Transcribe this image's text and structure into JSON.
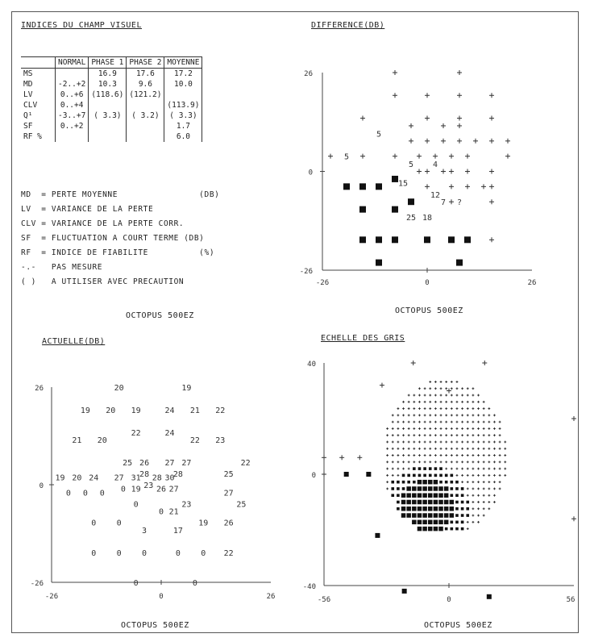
{
  "indices": {
    "title": "INDICES DU CHAMP VISUEL",
    "columns": [
      "NORMAL",
      "PHASE 1",
      "PHASE 2",
      "MOYENNE"
    ],
    "rows": [
      {
        "label": "MS",
        "normal": "",
        "phase1": "16.9",
        "phase2": "17.6",
        "moyenne": "17.2"
      },
      {
        "label": "MD",
        "normal": "-2..+2",
        "phase1": "10.3",
        "phase2": "9.6",
        "moyenne": "10.0"
      },
      {
        "label": "LV",
        "normal": "0..+6",
        "phase1": "(118.6)",
        "phase2": "(121.2)",
        "moyenne": ""
      },
      {
        "label": "CLV",
        "normal": "0..+4",
        "phase1": "",
        "phase2": "",
        "moyenne": "(113.9)"
      },
      {
        "label": "Q¹",
        "normal": "-3..+7",
        "phase1": "( 3.3)",
        "phase2": "( 3.2)",
        "moyenne": "( 3.3)"
      },
      {
        "label": "SF",
        "normal": "0..+2",
        "phase1": "",
        "phase2": "",
        "moyenne": "1.7"
      },
      {
        "label": "RF %",
        "normal": "",
        "phase1": "",
        "phase2": "",
        "moyenne": "6.0"
      }
    ],
    "legend": [
      "MD  = PERTE MOYENNE                (DB)",
      "LV  = VARIANCE DE LA PERTE",
      "CLV = VARIANCE DE LA PERTE CORR.",
      "SF  = FLUCTUATION A COURT TERME (DB)",
      "RF  = INDICE DE FIABILITE          (%)",
      "-.-   PAS MESURE",
      "( )   A UTILISER AVEC PRECAUTION"
    ],
    "footer": "OCTOPUS 500EZ"
  },
  "difference": {
    "title": "DIFFERENCE(DB)",
    "footer": "OCTOPUS 500EZ",
    "y_ticks": {
      "top": "26",
      "mid": "0",
      "bottom": "-26"
    },
    "x_ticks": {
      "left": "-26",
      "mid": "0",
      "right": "26"
    }
  },
  "actuelle": {
    "title": "ACTUELLE(DB)",
    "footer": "OCTOPUS 500EZ",
    "y_ticks": {
      "top": "26",
      "mid": "0",
      "bottom": "-26"
    },
    "x_ticks": {
      "left": "-26",
      "mid": "0",
      "right": "26"
    }
  },
  "gris": {
    "title": "ECHELLE DES GRIS",
    "footer": "OCTOPUS 500EZ",
    "y_ticks": {
      "top": "40",
      "mid": "0",
      "bottom": "-40"
    },
    "x_ticks": {
      "left": "-56",
      "mid": "0",
      "right": "56"
    }
  },
  "chart_data": [
    {
      "type": "scatter",
      "title": "DIFFERENCE(DB)",
      "xlim": [
        -26,
        26
      ],
      "ylim": [
        -26,
        26
      ],
      "plus_points": [
        [
          -8,
          26
        ],
        [
          8,
          26
        ],
        [
          -8,
          20
        ],
        [
          0,
          20
        ],
        [
          8,
          20
        ],
        [
          16,
          20
        ],
        [
          -16,
          14
        ],
        [
          0,
          14
        ],
        [
          8,
          14
        ],
        [
          16,
          14
        ],
        [
          -4,
          12
        ],
        [
          4,
          12
        ],
        [
          8,
          12
        ],
        [
          -4,
          8
        ],
        [
          0,
          8
        ],
        [
          4,
          8
        ],
        [
          8,
          8
        ],
        [
          12,
          8
        ],
        [
          16,
          8
        ],
        [
          20,
          8
        ],
        [
          -24,
          4
        ],
        [
          -16,
          4
        ],
        [
          -8,
          4
        ],
        [
          -2,
          4
        ],
        [
          2,
          4
        ],
        [
          6,
          4
        ],
        [
          10,
          4
        ],
        [
          20,
          4
        ],
        [
          -2,
          0
        ],
        [
          0,
          0
        ],
        [
          4,
          0
        ],
        [
          6,
          0
        ],
        [
          10,
          0
        ],
        [
          16,
          0
        ],
        [
          0,
          -4
        ],
        [
          6,
          -4
        ],
        [
          10,
          -4
        ],
        [
          14,
          -4
        ],
        [
          16,
          -4
        ],
        [
          6,
          -8
        ],
        [
          16,
          -8
        ],
        [
          16,
          -18
        ]
      ],
      "square_points": [
        [
          -20,
          -4
        ],
        [
          -16,
          -4
        ],
        [
          -12,
          -4
        ],
        [
          -8,
          -2
        ],
        [
          -16,
          -10
        ],
        [
          -8,
          -10
        ],
        [
          -4,
          -8
        ],
        [
          -8,
          -18
        ],
        [
          -16,
          -18
        ],
        [
          -12,
          -18
        ],
        [
          0,
          -18
        ],
        [
          6,
          -18
        ],
        [
          10,
          -18
        ],
        [
          -12,
          -24
        ],
        [
          8,
          -24
        ]
      ],
      "value_labels": [
        {
          "x": -12,
          "y": 10,
          "text": "5"
        },
        {
          "x": -20,
          "y": 4,
          "text": "5"
        },
        {
          "x": -4,
          "y": 2,
          "text": "5"
        },
        {
          "x": 2,
          "y": 2,
          "text": "4"
        },
        {
          "x": -6,
          "y": -3,
          "text": "15"
        },
        {
          "x": 2,
          "y": -6,
          "text": "12"
        },
        {
          "x": 4,
          "y": -8,
          "text": "7"
        },
        {
          "x": 8,
          "y": -8,
          "text": "?"
        },
        {
          "x": -4,
          "y": -12,
          "text": "25"
        },
        {
          "x": 0,
          "y": -12,
          "text": "18"
        }
      ]
    },
    {
      "type": "table",
      "title": "ACTUELLE(DB)",
      "xlim": [
        -26,
        26
      ],
      "ylim": [
        -26,
        26
      ],
      "values": [
        {
          "x": -10,
          "y": 26,
          "v": "20"
        },
        {
          "x": 6,
          "y": 26,
          "v": "19"
        },
        {
          "x": -18,
          "y": 20,
          "v": "19"
        },
        {
          "x": -12,
          "y": 20,
          "v": "20"
        },
        {
          "x": -6,
          "y": 20,
          "v": "19"
        },
        {
          "x": 2,
          "y": 20,
          "v": "24"
        },
        {
          "x": 8,
          "y": 20,
          "v": "21"
        },
        {
          "x": 14,
          "y": 20,
          "v": "22"
        },
        {
          "x": -20,
          "y": 12,
          "v": "21"
        },
        {
          "x": -14,
          "y": 12,
          "v": "20"
        },
        {
          "x": -6,
          "y": 14,
          "v": "22"
        },
        {
          "x": 2,
          "y": 14,
          "v": "24"
        },
        {
          "x": 8,
          "y": 12,
          "v": "22"
        },
        {
          "x": 14,
          "y": 12,
          "v": "23"
        },
        {
          "x": -8,
          "y": 6,
          "v": "25"
        },
        {
          "x": -4,
          "y": 6,
          "v": "26"
        },
        {
          "x": 2,
          "y": 6,
          "v": "27"
        },
        {
          "x": 6,
          "y": 6,
          "v": "27"
        },
        {
          "x": 20,
          "y": 6,
          "v": "22"
        },
        {
          "x": -24,
          "y": 2,
          "v": "19"
        },
        {
          "x": -20,
          "y": 2,
          "v": "20"
        },
        {
          "x": -16,
          "y": 2,
          "v": "24"
        },
        {
          "x": -10,
          "y": 2,
          "v": "27"
        },
        {
          "x": -6,
          "y": 2,
          "v": "31"
        },
        {
          "x": -4,
          "y": 3,
          "v": "28"
        },
        {
          "x": -1,
          "y": 2,
          "v": "28"
        },
        {
          "x": 2,
          "y": 2,
          "v": "30"
        },
        {
          "x": 4,
          "y": 3,
          "v": "28"
        },
        {
          "x": 16,
          "y": 3,
          "v": "25"
        },
        {
          "x": -22,
          "y": -2,
          "v": "0"
        },
        {
          "x": -18,
          "y": -2,
          "v": "0"
        },
        {
          "x": -14,
          "y": -2,
          "v": "0"
        },
        {
          "x": -9,
          "y": -1,
          "v": "0"
        },
        {
          "x": -6,
          "y": -1,
          "v": "19"
        },
        {
          "x": -3,
          "y": 0,
          "v": "23"
        },
        {
          "x": 0,
          "y": -1,
          "v": "26"
        },
        {
          "x": 3,
          "y": -1,
          "v": "27"
        },
        {
          "x": 16,
          "y": -2,
          "v": "27"
        },
        {
          "x": -6,
          "y": -5,
          "v": "0"
        },
        {
          "x": 0,
          "y": -7,
          "v": "0"
        },
        {
          "x": 3,
          "y": -7,
          "v": "21"
        },
        {
          "x": 6,
          "y": -5,
          "v": "23"
        },
        {
          "x": 19,
          "y": -5,
          "v": "25"
        },
        {
          "x": -16,
          "y": -10,
          "v": "0"
        },
        {
          "x": -10,
          "y": -10,
          "v": "0"
        },
        {
          "x": -4,
          "y": -12,
          "v": "3"
        },
        {
          "x": 4,
          "y": -12,
          "v": "17"
        },
        {
          "x": 10,
          "y": -10,
          "v": "19"
        },
        {
          "x": 16,
          "y": -10,
          "v": "26"
        },
        {
          "x": -16,
          "y": -18,
          "v": "0"
        },
        {
          "x": -10,
          "y": -18,
          "v": "0"
        },
        {
          "x": -4,
          "y": -18,
          "v": "0"
        },
        {
          "x": 4,
          "y": -18,
          "v": "0"
        },
        {
          "x": 10,
          "y": -18,
          "v": "0"
        },
        {
          "x": 16,
          "y": -18,
          "v": "22"
        },
        {
          "x": -6,
          "y": -26,
          "v": "0"
        },
        {
          "x": 8,
          "y": -26,
          "v": "0"
        }
      ]
    },
    {
      "type": "heatmap",
      "title": "ECHELLE DES GRIS",
      "xlim": [
        -56,
        56
      ],
      "ylim": [
        -40,
        40
      ],
      "field_radius": 28,
      "field_center": [
        -2,
        6
      ],
      "scotoma_center": [
        -10,
        -12
      ],
      "scotoma_radius": 18,
      "outer_plus_points": [
        [
          -16,
          40
        ],
        [
          16,
          40
        ],
        [
          -30,
          32
        ],
        [
          0,
          30
        ],
        [
          56,
          20
        ],
        [
          -56,
          6
        ],
        [
          -48,
          6
        ],
        [
          -40,
          6
        ],
        [
          -56,
          0
        ],
        [
          56,
          -16
        ]
      ],
      "outer_square_points": [
        [
          -46,
          0
        ],
        [
          -36,
          0
        ],
        [
          -32,
          -22
        ],
        [
          -20,
          -42
        ],
        [
          18,
          -44
        ]
      ]
    }
  ]
}
